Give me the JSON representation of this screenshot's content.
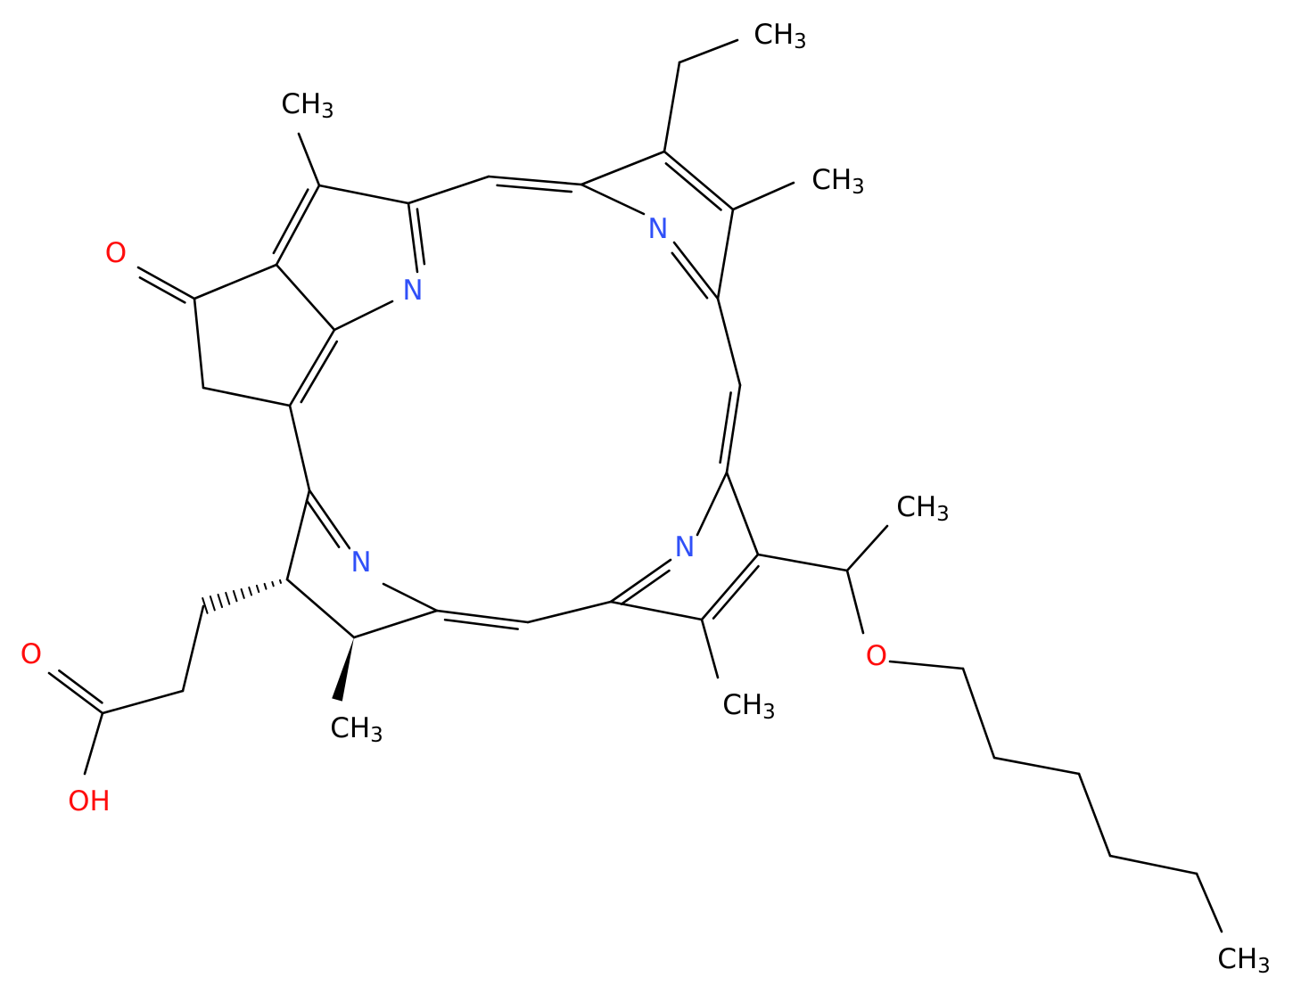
{
  "atoms": [
    {
      "label": "CH3"
    },
    {
      "label": "CH3"
    },
    {
      "label": "CH3"
    },
    {
      "label": "O"
    },
    {
      "label": "N"
    },
    {
      "label": "N"
    },
    {
      "label": "CH3"
    },
    {
      "label": "N"
    },
    {
      "label": "N"
    },
    {
      "label": "O"
    },
    {
      "label": "CH3"
    },
    {
      "label": "O"
    },
    {
      "label": "CH3"
    },
    {
      "label": "OH"
    },
    {
      "label": "CH3"
    }
  ]
}
